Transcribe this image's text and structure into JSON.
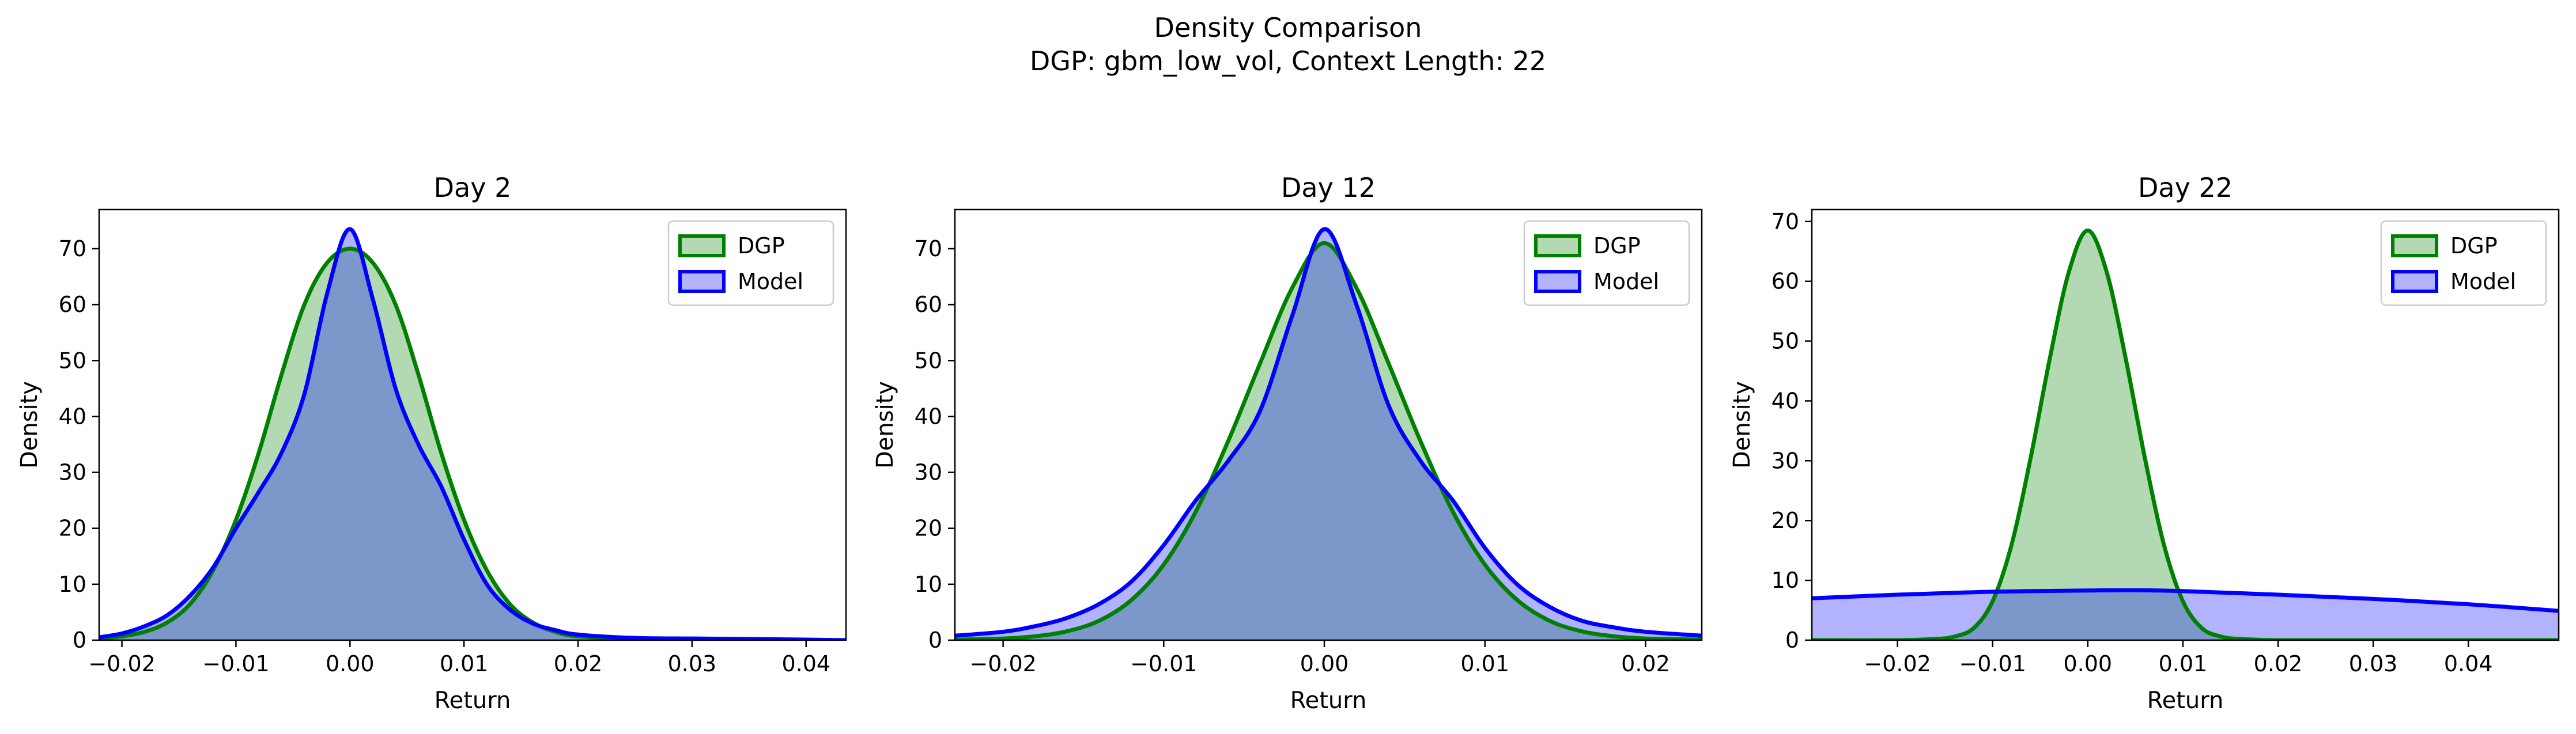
{
  "figure": {
    "title": "Density Comparison",
    "subtitle": "DGP: gbm_low_vol, Context Length: 22"
  },
  "colors": {
    "dgp_line": "#008000",
    "dgp_fill": "#b2d8b2",
    "model_line": "#0000ff",
    "model_fill": "#b2b2ff",
    "overlap_fill": "#7f97c8"
  },
  "chart_data": [
    {
      "type": "area",
      "title": "Day 2",
      "xlabel": "Return",
      "ylabel": "Density",
      "xlim": [
        -0.022,
        0.0435
      ],
      "ylim": [
        0,
        77
      ],
      "xticks": [
        -0.02,
        -0.01,
        0.0,
        0.01,
        0.02,
        0.03,
        0.04
      ],
      "xtick_labels": [
        "−0.02",
        "−0.01",
        "0.00",
        "0.01",
        "0.02",
        "0.03",
        "0.04"
      ],
      "yticks": [
        0,
        10,
        20,
        30,
        40,
        50,
        60,
        70
      ],
      "legend": {
        "position": "top-right",
        "entries": [
          "DGP",
          "Model"
        ]
      },
      "series": [
        {
          "name": "DGP",
          "x": [
            -0.022,
            -0.02,
            -0.018,
            -0.016,
            -0.014,
            -0.012,
            -0.01,
            -0.008,
            -0.006,
            -0.004,
            -0.002,
            0.0,
            0.002,
            0.004,
            0.006,
            0.008,
            0.01,
            0.012,
            0.014,
            0.016,
            0.018,
            0.02,
            0.025,
            0.03,
            0.035,
            0.04,
            0.0435
          ],
          "values": [
            0.3,
            0.7,
            1.5,
            3.2,
            6.5,
            12.5,
            21.5,
            33.5,
            47.5,
            60.0,
            67.5,
            70.0,
            67.5,
            60.0,
            47.5,
            33.5,
            21.5,
            12.5,
            6.5,
            3.2,
            1.5,
            0.7,
            0.2,
            0.1,
            0.0,
            0.0,
            0.0
          ]
        },
        {
          "name": "Model",
          "x": [
            -0.022,
            -0.02,
            -0.018,
            -0.016,
            -0.014,
            -0.012,
            -0.01,
            -0.008,
            -0.006,
            -0.004,
            -0.002,
            0.0,
            0.002,
            0.004,
            0.006,
            0.008,
            0.01,
            0.012,
            0.014,
            0.016,
            0.018,
            0.02,
            0.025,
            0.03,
            0.035,
            0.04,
            0.0435
          ],
          "values": [
            0.5,
            1.2,
            2.5,
            4.5,
            8.0,
            13.0,
            20.0,
            26.5,
            33.5,
            44.0,
            62.0,
            73.5,
            61.0,
            45.0,
            35.0,
            27.5,
            18.0,
            10.0,
            5.5,
            3.0,
            1.8,
            1.0,
            0.4,
            0.3,
            0.2,
            0.1,
            0.0
          ]
        }
      ]
    },
    {
      "type": "area",
      "title": "Day 12",
      "xlabel": "Return",
      "ylabel": "Density",
      "xlim": [
        -0.023,
        0.0235
      ],
      "ylim": [
        0,
        77
      ],
      "xticks": [
        -0.02,
        -0.01,
        0.0,
        0.01,
        0.02
      ],
      "xtick_labels": [
        "−0.02",
        "−0.01",
        "0.00",
        "0.01",
        "0.02"
      ],
      "yticks": [
        0,
        10,
        20,
        30,
        40,
        50,
        60,
        70
      ],
      "legend": {
        "position": "top-right",
        "entries": [
          "DGP",
          "Model"
        ]
      },
      "series": [
        {
          "name": "DGP",
          "x": [
            -0.023,
            -0.02,
            -0.018,
            -0.016,
            -0.014,
            -0.012,
            -0.01,
            -0.008,
            -0.006,
            -0.004,
            -0.002,
            0.0,
            0.002,
            0.004,
            0.006,
            0.008,
            0.01,
            0.012,
            0.014,
            0.016,
            0.018,
            0.02,
            0.0235
          ],
          "values": [
            0.1,
            0.3,
            0.7,
            1.6,
            3.5,
            7.2,
            13.5,
            23.0,
            35.5,
            49.5,
            63.0,
            71.0,
            63.0,
            49.5,
            35.5,
            23.0,
            13.5,
            7.2,
            3.5,
            1.6,
            0.7,
            0.3,
            0.1
          ]
        },
        {
          "name": "Model",
          "x": [
            -0.023,
            -0.02,
            -0.018,
            -0.016,
            -0.014,
            -0.012,
            -0.01,
            -0.008,
            -0.006,
            -0.004,
            -0.002,
            0.0,
            0.002,
            0.004,
            0.006,
            0.008,
            0.01,
            0.012,
            0.014,
            0.016,
            0.018,
            0.02,
            0.0235
          ],
          "values": [
            0.8,
            1.5,
            2.5,
            4.0,
            6.5,
            10.5,
            17.0,
            25.0,
            32.0,
            41.0,
            58.0,
            73.5,
            60.0,
            42.0,
            32.0,
            25.0,
            16.5,
            10.0,
            6.0,
            3.5,
            2.3,
            1.5,
            0.8
          ]
        }
      ]
    },
    {
      "type": "area",
      "title": "Day 22",
      "xlabel": "Return",
      "ylabel": "Density",
      "xlim": [
        -0.029,
        0.0495
      ],
      "ylim": [
        0,
        72
      ],
      "xticks": [
        -0.02,
        -0.01,
        0.0,
        0.01,
        0.02,
        0.03,
        0.04
      ],
      "xtick_labels": [
        "−0.02",
        "−0.01",
        "0.00",
        "0.01",
        "0.02",
        "0.03",
        "0.04"
      ],
      "yticks": [
        0,
        10,
        20,
        30,
        40,
        50,
        60,
        70
      ],
      "legend": {
        "position": "top-right",
        "entries": [
          "DGP",
          "Model"
        ]
      },
      "series": [
        {
          "name": "DGP",
          "x": [
            -0.029,
            -0.02,
            -0.016,
            -0.014,
            -0.012,
            -0.01,
            -0.008,
            -0.006,
            -0.004,
            -0.002,
            0.0,
            0.002,
            0.004,
            0.006,
            0.008,
            0.01,
            0.012,
            0.014,
            0.016,
            0.02,
            0.03,
            0.0495
          ],
          "values": [
            0.0,
            0.0,
            0.2,
            0.6,
            2.0,
            6.5,
            16.0,
            30.5,
            47.0,
            61.5,
            68.5,
            61.5,
            47.0,
            30.5,
            16.0,
            6.5,
            2.0,
            0.6,
            0.2,
            0.0,
            0.0,
            0.0
          ]
        },
        {
          "name": "Model",
          "x": [
            -0.029,
            -0.02,
            -0.01,
            0.0,
            0.005,
            0.01,
            0.02,
            0.03,
            0.04,
            0.0495
          ],
          "values": [
            7.0,
            7.6,
            8.1,
            8.3,
            8.35,
            8.2,
            7.6,
            6.9,
            6.0,
            4.9
          ]
        }
      ]
    }
  ]
}
